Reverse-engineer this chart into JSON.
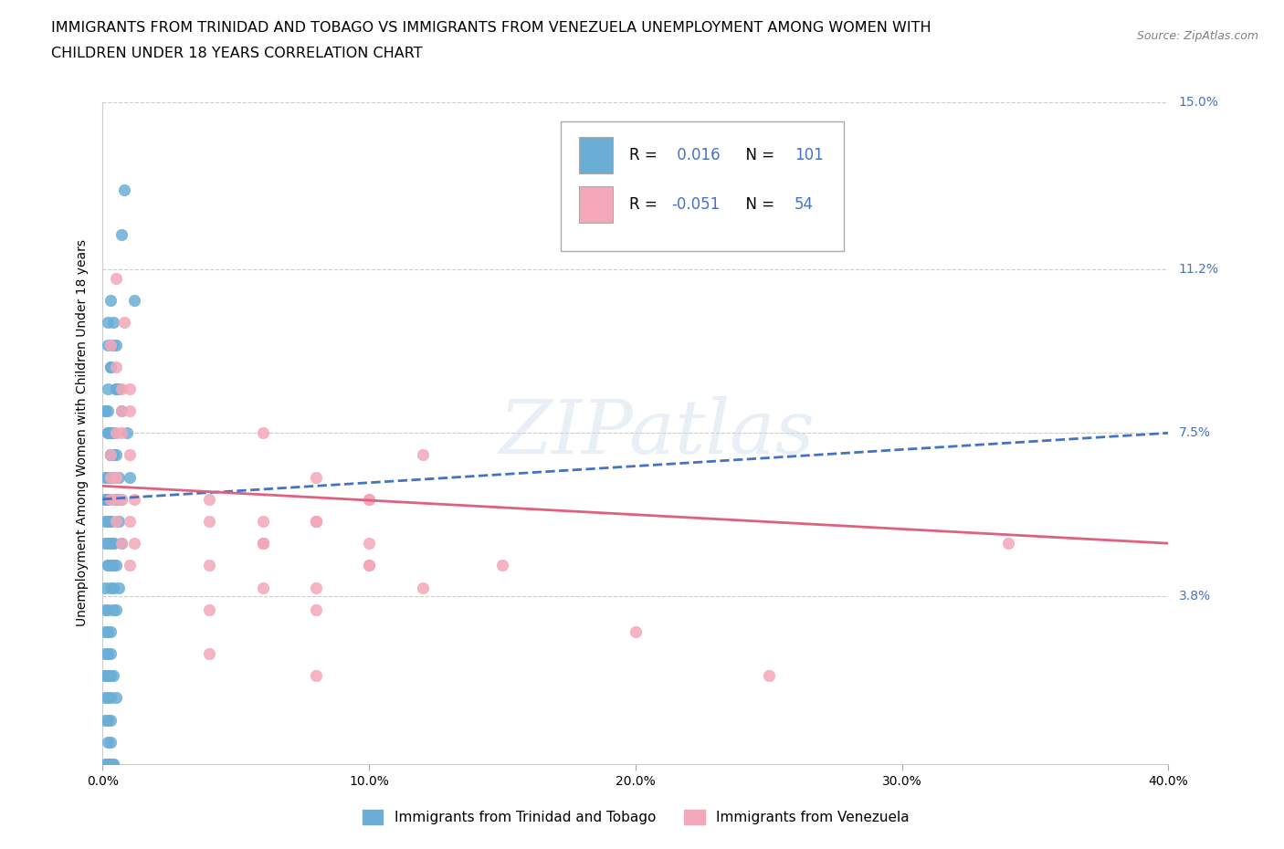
{
  "title_line1": "IMMIGRANTS FROM TRINIDAD AND TOBAGO VS IMMIGRANTS FROM VENEZUELA UNEMPLOYMENT AMONG WOMEN WITH",
  "title_line2": "CHILDREN UNDER 18 YEARS CORRELATION CHART",
  "source_text": "Source: ZipAtlas.com",
  "watermark": "ZIPatlas",
  "ylabel": "Unemployment Among Women with Children Under 18 years",
  "legend_bottom_label1": "Immigrants from Trinidad and Tobago",
  "legend_bottom_label2": "Immigrants from Venezuela",
  "r1": 0.016,
  "n1": 101,
  "r2": -0.051,
  "n2": 54,
  "xlim": [
    0.0,
    0.4
  ],
  "ylim": [
    0.0,
    0.15
  ],
  "yticks": [
    0.038,
    0.075,
    0.112,
    0.15
  ],
  "ytick_labels": [
    "3.8%",
    "7.5%",
    "11.2%",
    "15.0%"
  ],
  "xticks": [
    0.0,
    0.1,
    0.2,
    0.3,
    0.4
  ],
  "xtick_labels": [
    "0.0%",
    "10.0%",
    "20.0%",
    "30.0%",
    "40.0%"
  ],
  "color_blue": "#6aaed6",
  "color_blue_dark": "#4472c4",
  "color_pink": "#f4a7b9",
  "color_pink_dark": "#e06080",
  "color_blue_text": "#4472c4",
  "background_color": "#ffffff",
  "grid_color": "#cccccc",
  "blue_trend_x": [
    0.0,
    0.4
  ],
  "blue_trend_y": [
    0.06,
    0.075
  ],
  "pink_trend_x": [
    0.0,
    0.4
  ],
  "pink_trend_y": [
    0.063,
    0.05
  ],
  "blue_x": [
    0.008,
    0.007,
    0.012,
    0.005,
    0.005,
    0.006,
    0.009,
    0.003,
    0.01,
    0.004,
    0.002,
    0.003,
    0.005,
    0.007,
    0.004,
    0.002,
    0.003,
    0.004,
    0.003,
    0.006,
    0.003,
    0.002,
    0.004,
    0.003,
    0.002,
    0.001,
    0.004,
    0.005,
    0.006,
    0.003,
    0.002,
    0.001,
    0.003,
    0.004,
    0.005,
    0.006,
    0.002,
    0.003,
    0.004,
    0.005,
    0.001,
    0.002,
    0.003,
    0.004,
    0.005,
    0.006,
    0.007,
    0.001,
    0.002,
    0.003,
    0.004,
    0.005,
    0.006,
    0.001,
    0.002,
    0.003,
    0.004,
    0.002,
    0.003,
    0.004,
    0.001,
    0.002,
    0.003,
    0.004,
    0.005,
    0.001,
    0.002,
    0.003,
    0.004,
    0.002,
    0.001,
    0.002,
    0.003,
    0.001,
    0.002,
    0.003,
    0.004,
    0.005,
    0.001,
    0.002,
    0.003,
    0.001,
    0.002,
    0.003,
    0.001,
    0.002,
    0.003,
    0.001,
    0.002,
    0.003,
    0.001,
    0.002,
    0.003,
    0.004,
    0.002,
    0.003,
    0.001,
    0.002,
    0.003,
    0.004,
    0.001
  ],
  "blue_y": [
    0.13,
    0.12,
    0.105,
    0.095,
    0.085,
    0.085,
    0.075,
    0.07,
    0.065,
    0.1,
    0.095,
    0.09,
    0.085,
    0.08,
    0.075,
    0.08,
    0.075,
    0.07,
    0.065,
    0.06,
    0.105,
    0.1,
    0.095,
    0.09,
    0.085,
    0.08,
    0.075,
    0.07,
    0.065,
    0.07,
    0.065,
    0.06,
    0.075,
    0.07,
    0.065,
    0.06,
    0.075,
    0.07,
    0.065,
    0.06,
    0.08,
    0.075,
    0.07,
    0.065,
    0.06,
    0.055,
    0.05,
    0.065,
    0.06,
    0.055,
    0.05,
    0.045,
    0.04,
    0.06,
    0.055,
    0.05,
    0.045,
    0.06,
    0.055,
    0.05,
    0.055,
    0.05,
    0.045,
    0.04,
    0.035,
    0.05,
    0.045,
    0.04,
    0.035,
    0.045,
    0.04,
    0.035,
    0.03,
    0.035,
    0.03,
    0.025,
    0.02,
    0.015,
    0.03,
    0.025,
    0.02,
    0.025,
    0.02,
    0.015,
    0.02,
    0.015,
    0.01,
    0.015,
    0.01,
    0.005,
    0.01,
    0.005,
    0.0,
    0.0,
    0.0,
    0.0,
    0.0,
    0.0,
    0.0,
    0.0,
    0.02
  ],
  "pink_x": [
    0.008,
    0.005,
    0.007,
    0.01,
    0.003,
    0.005,
    0.007,
    0.01,
    0.003,
    0.005,
    0.007,
    0.003,
    0.005,
    0.007,
    0.005,
    0.01,
    0.003,
    0.005,
    0.007,
    0.01,
    0.012,
    0.005,
    0.007,
    0.01,
    0.012,
    0.06,
    0.08,
    0.1,
    0.12,
    0.08,
    0.1,
    0.06,
    0.04,
    0.08,
    0.06,
    0.04,
    0.1,
    0.08,
    0.06,
    0.04,
    0.08,
    0.06,
    0.1,
    0.12,
    0.04,
    0.08,
    0.06,
    0.1,
    0.04,
    0.08,
    0.15,
    0.2,
    0.25,
    0.34
  ],
  "pink_y": [
    0.1,
    0.09,
    0.08,
    0.085,
    0.095,
    0.11,
    0.085,
    0.08,
    0.065,
    0.06,
    0.075,
    0.07,
    0.065,
    0.06,
    0.075,
    0.07,
    0.06,
    0.055,
    0.05,
    0.045,
    0.06,
    0.065,
    0.06,
    0.055,
    0.05,
    0.075,
    0.065,
    0.06,
    0.07,
    0.055,
    0.05,
    0.055,
    0.06,
    0.055,
    0.05,
    0.055,
    0.06,
    0.055,
    0.05,
    0.045,
    0.04,
    0.05,
    0.045,
    0.04,
    0.035,
    0.035,
    0.04,
    0.045,
    0.025,
    0.02,
    0.045,
    0.03,
    0.02,
    0.05
  ]
}
